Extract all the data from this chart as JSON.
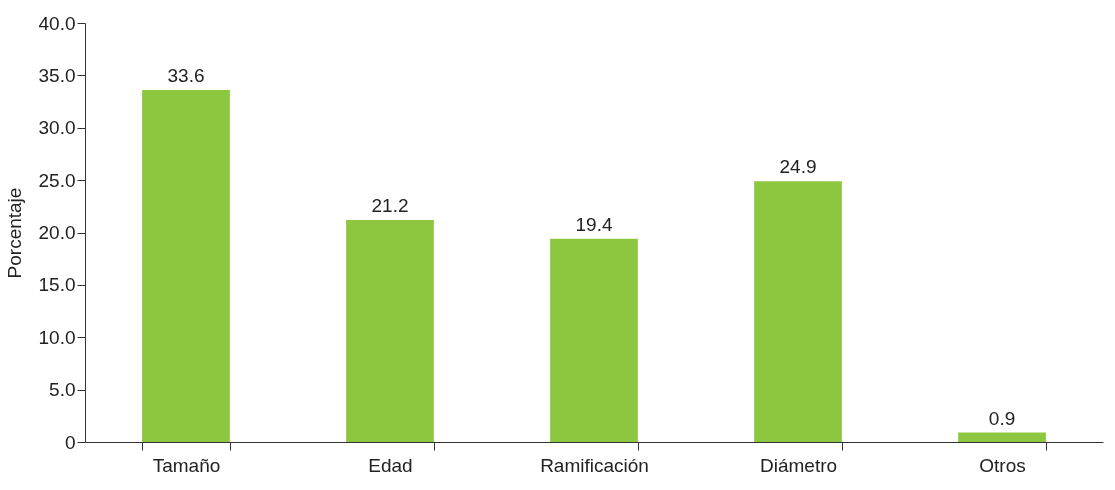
{
  "chart_data": {
    "type": "bar",
    "ylabel": "Porcentaje",
    "categories": [
      "Tamaño",
      "Edad",
      "Ramificación",
      "Diámetro",
      "Otros"
    ],
    "values": [
      33.6,
      21.2,
      19.4,
      24.9,
      0.9
    ],
    "color": "#8dc63f",
    "ylim": [
      0,
      40
    ],
    "yticks": [
      0,
      {
        "value": 5,
        "label": "5.0"
      },
      {
        "value": 10,
        "label": "10.0"
      },
      {
        "value": 15,
        "label": "15.0"
      },
      {
        "value": 20,
        "label": "20.0"
      },
      {
        "value": 25,
        "label": "25.0"
      },
      {
        "value": 30,
        "label": "30.0"
      },
      {
        "value": 35,
        "label": "35.0"
      },
      {
        "value": 40,
        "label": "40.0"
      }
    ],
    "data_labels": true,
    "grid": false
  }
}
